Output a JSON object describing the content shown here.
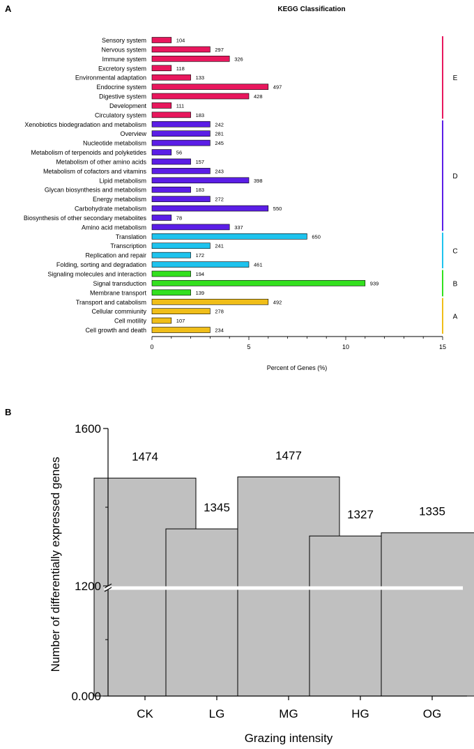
{
  "figure": {
    "panel_a_label": "A",
    "panel_b_label": "B"
  },
  "colors": {
    "E": "#e8175d",
    "D": "#5b1ee6",
    "C": "#1ec3ee",
    "B": "#33e01e",
    "A": "#f0be19",
    "bar_gray": "#c0c0c0"
  },
  "chart_data": [
    {
      "type": "bar",
      "orientation": "horizontal",
      "title": "KEGG Classification",
      "xlabel": "Percent of Genes (%)",
      "ylabel": "",
      "xlim": [
        0,
        15
      ],
      "xticks": [
        "0",
        "5",
        "10",
        "15"
      ],
      "items": [
        {
          "name": "Sensory system",
          "percent": 1.0,
          "count": "104",
          "group": "E"
        },
        {
          "name": "Nervous system",
          "percent": 3.0,
          "count": "297",
          "group": "E"
        },
        {
          "name": "Immune system",
          "percent": 4.0,
          "count": "326",
          "group": "E"
        },
        {
          "name": "Excretory system",
          "percent": 1.0,
          "count": "118",
          "group": "E"
        },
        {
          "name": "Environmental adaptation",
          "percent": 2.0,
          "count": "133",
          "group": "E"
        },
        {
          "name": "Endocrine system",
          "percent": 6.0,
          "count": "497",
          "group": "E"
        },
        {
          "name": "Digestive system",
          "percent": 5.0,
          "count": "428",
          "group": "E"
        },
        {
          "name": "Development",
          "percent": 1.0,
          "count": "111",
          "group": "E"
        },
        {
          "name": "Circulatory system",
          "percent": 2.0,
          "count": "183",
          "group": "E"
        },
        {
          "name": "Xenobiotics biodegradation and metabolism",
          "percent": 3.0,
          "count": "242",
          "group": "D"
        },
        {
          "name": "Overview",
          "percent": 3.0,
          "count": "281",
          "group": "D"
        },
        {
          "name": "Nucleotide metabolism",
          "percent": 3.0,
          "count": "245",
          "group": "D"
        },
        {
          "name": "Metabolism of terpenoids and polyketides",
          "percent": 1.0,
          "count": "56",
          "group": "D"
        },
        {
          "name": "Metabolism of other amino acids",
          "percent": 2.0,
          "count": "157",
          "group": "D"
        },
        {
          "name": "Metabolism of cofactors and vitamins",
          "percent": 3.0,
          "count": "243",
          "group": "D"
        },
        {
          "name": "Lipid metabolism",
          "percent": 5.0,
          "count": "398",
          "group": "D"
        },
        {
          "name": "Glycan biosynthesis and metabolism",
          "percent": 2.0,
          "count": "183",
          "group": "D"
        },
        {
          "name": "Energy metabolism",
          "percent": 3.0,
          "count": "272",
          "group": "D"
        },
        {
          "name": "Carbohydrate metabolism",
          "percent": 6.0,
          "count": "550",
          "group": "D"
        },
        {
          "name": "Biosynthesis of other secondary metabolites",
          "percent": 1.0,
          "count": "78",
          "group": "D"
        },
        {
          "name": "Amino acid metabolism",
          "percent": 4.0,
          "count": "337",
          "group": "D"
        },
        {
          "name": "Translation",
          "percent": 8.0,
          "count": "650",
          "group": "C"
        },
        {
          "name": "Transcription",
          "percent": 3.0,
          "count": "241",
          "group": "C"
        },
        {
          "name": "Replication and repair",
          "percent": 2.0,
          "count": "172",
          "group": "C"
        },
        {
          "name": "Folding, sorting and degradation",
          "percent": 5.0,
          "count": "461",
          "group": "C"
        },
        {
          "name": "Signaling molecules and interaction",
          "percent": 2.0,
          "count": "194",
          "group": "B"
        },
        {
          "name": "Signal transduction",
          "percent": 11.0,
          "count": "939",
          "group": "B"
        },
        {
          "name": "Membrane transport",
          "percent": 2.0,
          "count": "139",
          "group": "B"
        },
        {
          "name": "Transport and catabolism",
          "percent": 6.0,
          "count": "492",
          "group": "A"
        },
        {
          "name": "Cellular commiunity",
          "percent": 3.0,
          "count": "278",
          "group": "A"
        },
        {
          "name": "Cell motility",
          "percent": 1.0,
          "count": "107",
          "group": "A"
        },
        {
          "name": "Cell growth and death",
          "percent": 3.0,
          "count": "234",
          "group": "A"
        }
      ],
      "groups": [
        {
          "id": "E",
          "label": "E"
        },
        {
          "id": "D",
          "label": "D"
        },
        {
          "id": "C",
          "label": "C"
        },
        {
          "id": "B",
          "label": "B"
        },
        {
          "id": "A",
          "label": "A"
        }
      ]
    },
    {
      "type": "bar",
      "title": "",
      "xlabel": "Grazing intensity",
      "ylabel": "Number of differentially expressed genes",
      "categories": [
        "CK",
        "LG",
        "MG",
        "HG",
        "OG"
      ],
      "values": [
        1474,
        1345,
        1477,
        1327,
        1335
      ],
      "value_labels": [
        "1474",
        "1345",
        "1477",
        "1327",
        "1335"
      ],
      "yaxis_break": [
        0,
        1200
      ],
      "ylim": [
        1200,
        1600
      ],
      "yticks": [
        "0.000",
        "1200",
        "1600"
      ]
    }
  ]
}
